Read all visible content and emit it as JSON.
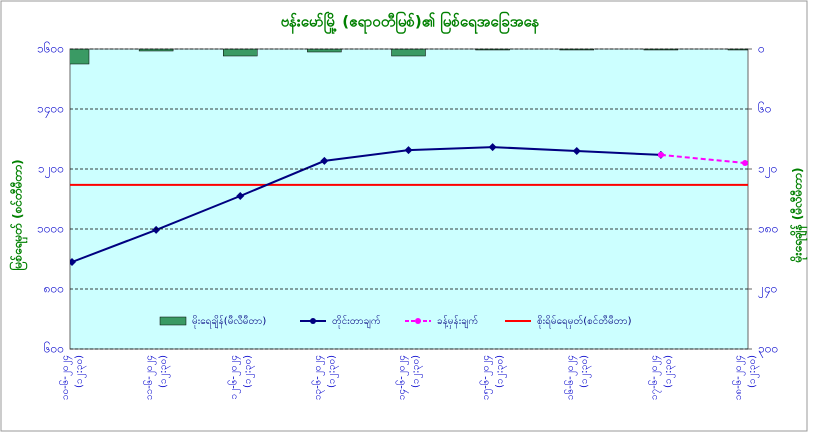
{
  "chart_data": {
    "type": "combo",
    "title": "ဗန်းမော်မြို့ (ဧရာဝတီမြစ်)၏ မြစ်ရေအခြေအနေ",
    "y_label": "မြစ်ရေမှတ် (စင်တီမီတာ)",
    "y2_label": "မိုးရေချိန် (မီလီမီတာ)",
    "categories": [
      "၁၀-၆-၂၀၂၄",
      "၁၁-၆-၂၀၂၄",
      "၁၂-၆-၂၀၂၄",
      "၁၃-၆-၂၀၂၄",
      "၁၄-၆-၂၀၂၄",
      "၁၅-၆-၂၀၂၄",
      "၁၆-၆-၂၀၂၄",
      "၁၇-၆-၂၀၂၄",
      "၁၈-၆-၂၀၂၄"
    ],
    "times": [
      "(၁၂:၃၀)",
      "(၁၂:၃၀)",
      "(၁၂:၃၀)",
      "(၁၂:၃၀)",
      "(၁၂:၃၀)",
      "(၁၂:၃၀)",
      "(၁၂:၃၀)",
      "(၁၂:၃၀)",
      "(၁၂:၃၀)"
    ],
    "ylim": [
      600,
      1600
    ],
    "yticks": [
      {
        "value": 600,
        "label": "၆၀၀"
      },
      {
        "value": 800,
        "label": "၈၀၀"
      },
      {
        "value": 1000,
        "label": "၁၀၀၀"
      },
      {
        "value": 1200,
        "label": "၁၂၀၀"
      },
      {
        "value": 1400,
        "label": "၁၄၀၀"
      },
      {
        "value": 1600,
        "label": "၁၆၀၀"
      }
    ],
    "y2lim": [
      300,
      0
    ],
    "y2ticks": [
      {
        "value": 0,
        "label": "၀"
      },
      {
        "value": 60,
        "label": "၆၀"
      },
      {
        "value": 120,
        "label": "၁၂၀"
      },
      {
        "value": 180,
        "label": "၁၈၀"
      },
      {
        "value": 240,
        "label": "၂၄၀"
      },
      {
        "value": 300,
        "label": "၃၀၀"
      }
    ],
    "series": [
      {
        "name": "မိုးရေချိန်(မီလီမီတာ)",
        "type": "bar",
        "axis": "y2",
        "color": "#3a9a64",
        "values": [
          15,
          2,
          7,
          3,
          7,
          0,
          1,
          0,
          0
        ]
      },
      {
        "name": "တိုင်းတာချက်",
        "type": "line",
        "color": "#000080",
        "values": [
          890,
          997,
          1110,
          1227,
          1263,
          1273,
          1260,
          1247,
          null
        ]
      },
      {
        "name": "ခန့်မှန်းချက်",
        "type": "dashed",
        "color": "#ff00ff",
        "values": [
          null,
          null,
          null,
          null,
          null,
          null,
          null,
          1247,
          1220
        ]
      }
    ],
    "danger_line": {
      "name": "စိုးရိမ်ရေမှတ်(စင်တီမီတာ)",
      "color": "#ff0000",
      "value": 1147
    },
    "grid": true
  }
}
